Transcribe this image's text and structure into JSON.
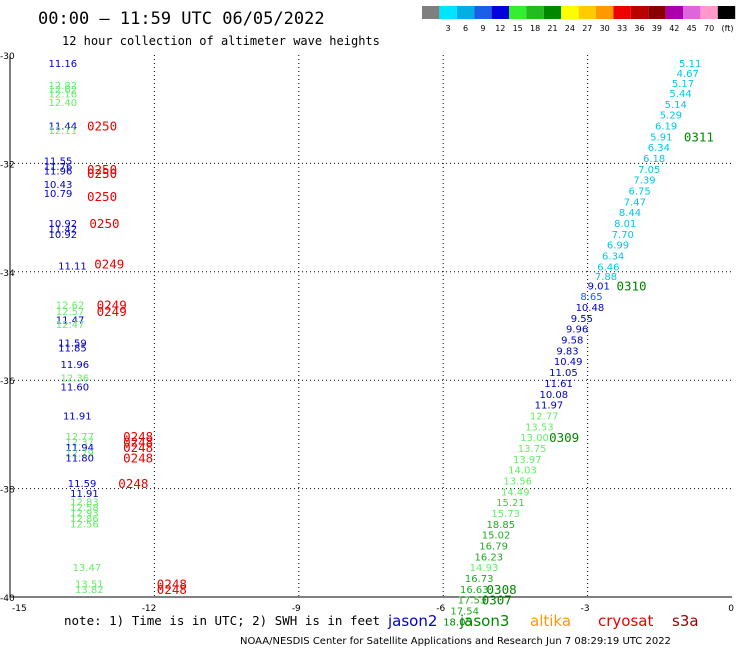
{
  "header": {
    "title": "00:00 — 11:59 UTC 06/05/2022",
    "subtitle": "12 hour collection of altimeter wave heights"
  },
  "legend": {
    "swatches": [
      {
        "color": "#7f7f7f",
        "label": ""
      },
      {
        "color": "#00e5ff",
        "label": "3"
      },
      {
        "color": "#00b0e0",
        "label": "6"
      },
      {
        "color": "#1a5fe8",
        "label": "9"
      },
      {
        "color": "#0000dd",
        "label": "12"
      },
      {
        "color": "#33ee33",
        "label": "15"
      },
      {
        "color": "#22bb22",
        "label": "18"
      },
      {
        "color": "#008800",
        "label": "21"
      },
      {
        "color": "#ffff00",
        "label": "24"
      },
      {
        "color": "#ffcc00",
        "label": "27"
      },
      {
        "color": "#ff9900",
        "label": "30"
      },
      {
        "color": "#ee0000",
        "label": "33"
      },
      {
        "color": "#bb0000",
        "label": "36"
      },
      {
        "color": "#880000",
        "label": "39"
      },
      {
        "color": "#aa00aa",
        "label": "42"
      },
      {
        "color": "#dd66dd",
        "label": "45"
      },
      {
        "color": "#ff99cc",
        "label": "70"
      },
      {
        "color": "#000000",
        "label": "(ft)"
      }
    ]
  },
  "footer": {
    "note": "note: 1) Time is in UTC; 2) SWH is in feet",
    "credit": "NOAA/NESDIS Center for Satellite Applications and Research   Jun  7 08:29:19 UTC 2022",
    "satellites": [
      {
        "name": "jason2",
        "color": "#0000cc"
      },
      {
        "name": "jason3",
        "color": "#008800"
      },
      {
        "name": "altika",
        "color": "#ff9900"
      },
      {
        "name": "cryosat",
        "color": "#ee0000"
      },
      {
        "name": "s3a",
        "color": "#990000"
      }
    ]
  },
  "chart_data": {
    "type": "scatter",
    "xlim": [
      -15,
      0
    ],
    "ylim": [
      -40,
      -30
    ],
    "x_ticks": [
      "-15",
      "-12",
      "-9",
      "-6",
      "-3",
      "0"
    ],
    "y_ticks": [
      "-30",
      "-32",
      "-34",
      "-36",
      "-38",
      "-40"
    ],
    "grid": true,
    "points": [
      {
        "x": -14.2,
        "y": -30.15,
        "text": "11.16",
        "color": "#0000cc"
      },
      {
        "x": -14.2,
        "y": -30.55,
        "text": "12.82",
        "color": "#66ee66"
      },
      {
        "x": -14.2,
        "y": -30.63,
        "text": "12.62",
        "color": "#66ee66"
      },
      {
        "x": -14.2,
        "y": -30.71,
        "text": "12.16",
        "color": "#66ee66"
      },
      {
        "x": -14.2,
        "y": -30.87,
        "text": "12.40",
        "color": "#66ee66"
      },
      {
        "x": -14.2,
        "y": -31.3,
        "text": "11.44",
        "color": "#0000cc"
      },
      {
        "x": -14.2,
        "y": -31.38,
        "text": "12.11",
        "color": "#66ee66"
      },
      {
        "x": -14.3,
        "y": -31.95,
        "text": "11.55",
        "color": "#0000cc"
      },
      {
        "x": -14.3,
        "y": -32.05,
        "text": "11.76",
        "color": "#0000cc"
      },
      {
        "x": -14.3,
        "y": -32.13,
        "text": "11.96",
        "color": "#0000cc"
      },
      {
        "x": -14.3,
        "y": -32.38,
        "text": "10.43",
        "color": "#0000cc"
      },
      {
        "x": -14.3,
        "y": -32.55,
        "text": "10.79",
        "color": "#0000cc"
      },
      {
        "x": -14.2,
        "y": -33.1,
        "text": "10.92",
        "color": "#0000cc"
      },
      {
        "x": -14.2,
        "y": -33.2,
        "text": "11.42",
        "color": "#0000cc"
      },
      {
        "x": -14.2,
        "y": -33.3,
        "text": "10.92",
        "color": "#0000cc"
      },
      {
        "x": -14.0,
        "y": -33.88,
        "text": "11.11",
        "color": "#0000cc"
      },
      {
        "x": -14.05,
        "y": -34.6,
        "text": "12.62",
        "color": "#66ee66"
      },
      {
        "x": -14.05,
        "y": -34.72,
        "text": "12.57",
        "color": "#66ee66"
      },
      {
        "x": -14.05,
        "y": -34.88,
        "text": "11.47",
        "color": "#0000cc"
      },
      {
        "x": -14.05,
        "y": -34.96,
        "text": "12.47",
        "color": "#66ee66"
      },
      {
        "x": -14.0,
        "y": -35.3,
        "text": "11.59",
        "color": "#0000cc"
      },
      {
        "x": -14.0,
        "y": -35.4,
        "text": "11.85",
        "color": "#0000cc"
      },
      {
        "x": -13.95,
        "y": -35.7,
        "text": "11.96",
        "color": "#0000cc"
      },
      {
        "x": -13.95,
        "y": -35.95,
        "text": "12.36",
        "color": "#66ee66"
      },
      {
        "x": -13.95,
        "y": -36.12,
        "text": "11.60",
        "color": "#0000cc"
      },
      {
        "x": -13.9,
        "y": -36.65,
        "text": "11.91",
        "color": "#0000cc"
      },
      {
        "x": -13.85,
        "y": -37.03,
        "text": "12.77",
        "color": "#66ee66"
      },
      {
        "x": -13.85,
        "y": -37.13,
        "text": "12.37",
        "color": "#66ee66"
      },
      {
        "x": -13.85,
        "y": -37.23,
        "text": "11.94",
        "color": "#0000cc"
      },
      {
        "x": -13.85,
        "y": -37.33,
        "text": "12.79",
        "color": "#66ee66"
      },
      {
        "x": -13.85,
        "y": -37.43,
        "text": "11.80",
        "color": "#0000cc"
      },
      {
        "x": -13.8,
        "y": -37.9,
        "text": "11.59",
        "color": "#0000cc"
      },
      {
        "x": -13.75,
        "y": -38.08,
        "text": "11.91",
        "color": "#0000cc"
      },
      {
        "x": -13.75,
        "y": -38.24,
        "text": "12.83",
        "color": "#66ee66"
      },
      {
        "x": -13.75,
        "y": -38.34,
        "text": "12.58",
        "color": "#66ee66"
      },
      {
        "x": -13.75,
        "y": -38.44,
        "text": "12.93",
        "color": "#66ee66"
      },
      {
        "x": -13.75,
        "y": -38.54,
        "text": "12.86",
        "color": "#66ee66"
      },
      {
        "x": -13.75,
        "y": -38.64,
        "text": "12.56",
        "color": "#66ee66"
      },
      {
        "x": -13.7,
        "y": -39.45,
        "text": "13.47",
        "color": "#66ee66"
      },
      {
        "x": -13.65,
        "y": -39.75,
        "text": "13.51",
        "color": "#66ee66"
      },
      {
        "x": -13.65,
        "y": -39.85,
        "text": "13.82",
        "color": "#66ee66"
      },
      {
        "x": -1.1,
        "y": -30.15,
        "text": "5.11",
        "color": "#00c8e8"
      },
      {
        "x": -1.15,
        "y": -30.33,
        "text": "4.67",
        "color": "#00c8e8"
      },
      {
        "x": -1.25,
        "y": -30.52,
        "text": "5.17",
        "color": "#00c8e8"
      },
      {
        "x": -1.3,
        "y": -30.7,
        "text": "5.44",
        "color": "#00c8e8"
      },
      {
        "x": -1.4,
        "y": -30.9,
        "text": "5.14",
        "color": "#00c8e8"
      },
      {
        "x": -1.5,
        "y": -31.1,
        "text": "5.29",
        "color": "#00c8e8"
      },
      {
        "x": -1.6,
        "y": -31.3,
        "text": "6.19",
        "color": "#00c8e8"
      },
      {
        "x": -1.7,
        "y": -31.5,
        "text": "5.91",
        "color": "#00c8e8"
      },
      {
        "x": -1.75,
        "y": -31.7,
        "text": "6.34",
        "color": "#00c8e8"
      },
      {
        "x": -1.85,
        "y": -31.9,
        "text": "6.18",
        "color": "#00c8e8"
      },
      {
        "x": -1.95,
        "y": -32.1,
        "text": "7.05",
        "color": "#00c8e8"
      },
      {
        "x": -2.05,
        "y": -32.3,
        "text": "7.39",
        "color": "#00c8e8"
      },
      {
        "x": -2.15,
        "y": -32.5,
        "text": "6.75",
        "color": "#00c8e8"
      },
      {
        "x": -2.25,
        "y": -32.7,
        "text": "7.47",
        "color": "#00c8e8"
      },
      {
        "x": -2.35,
        "y": -32.9,
        "text": "8.44",
        "color": "#00c8e8"
      },
      {
        "x": -2.45,
        "y": -33.1,
        "text": "8.01",
        "color": "#00c8e8"
      },
      {
        "x": -2.5,
        "y": -33.3,
        "text": "7.70",
        "color": "#00c8e8"
      },
      {
        "x": -2.6,
        "y": -33.5,
        "text": "6.99",
        "color": "#00c8e8"
      },
      {
        "x": -2.7,
        "y": -33.7,
        "text": "6.34",
        "color": "#00c8e8"
      },
      {
        "x": -2.8,
        "y": -33.9,
        "text": "6.46",
        "color": "#00c8e8"
      },
      {
        "x": -2.85,
        "y": -34.08,
        "text": "7.88",
        "color": "#00c8e8"
      },
      {
        "x": -3.0,
        "y": -34.25,
        "text": "9.01",
        "color": "#0000cc"
      },
      {
        "x": -3.15,
        "y": -34.45,
        "text": "8.65",
        "color": "#1a5fe8"
      },
      {
        "x": -3.25,
        "y": -34.65,
        "text": "10.48",
        "color": "#0000cc"
      },
      {
        "x": -3.35,
        "y": -34.85,
        "text": "9.55",
        "color": "#0000cc"
      },
      {
        "x": -3.45,
        "y": -35.05,
        "text": "9.96",
        "color": "#0000cc"
      },
      {
        "x": -3.55,
        "y": -35.25,
        "text": "9.58",
        "color": "#0000cc"
      },
      {
        "x": -3.65,
        "y": -35.45,
        "text": "9.83",
        "color": "#0000cc"
      },
      {
        "x": -3.7,
        "y": -35.65,
        "text": "10.49",
        "color": "#0000cc"
      },
      {
        "x": -3.8,
        "y": -35.85,
        "text": "11.05",
        "color": "#0000cc"
      },
      {
        "x": -3.9,
        "y": -36.05,
        "text": "11.61",
        "color": "#0000cc"
      },
      {
        "x": -4.0,
        "y": -36.25,
        "text": "10.08",
        "color": "#0000cc"
      },
      {
        "x": -4.1,
        "y": -36.45,
        "text": "11.97",
        "color": "#0000cc"
      },
      {
        "x": -4.2,
        "y": -36.65,
        "text": "12.77",
        "color": "#66ee66"
      },
      {
        "x": -4.3,
        "y": -36.85,
        "text": "13.53",
        "color": "#66ee66"
      },
      {
        "x": -4.4,
        "y": -37.05,
        "text": "13.00",
        "color": "#66ee66"
      },
      {
        "x": -4.45,
        "y": -37.25,
        "text": "13.75",
        "color": "#66ee66"
      },
      {
        "x": -4.55,
        "y": -37.45,
        "text": "13.97",
        "color": "#66ee66"
      },
      {
        "x": -4.65,
        "y": -37.65,
        "text": "14.03",
        "color": "#66ee66"
      },
      {
        "x": -4.75,
        "y": -37.85,
        "text": "13.56",
        "color": "#66ee66"
      },
      {
        "x": -4.8,
        "y": -38.05,
        "text": "14.49",
        "color": "#66ee66"
      },
      {
        "x": -4.9,
        "y": -38.25,
        "text": "15.21",
        "color": "#44cc44"
      },
      {
        "x": -5.0,
        "y": -38.45,
        "text": "15.73",
        "color": "#66ee66"
      },
      {
        "x": -5.1,
        "y": -38.65,
        "text": "18.85",
        "color": "#22aa22"
      },
      {
        "x": -5.2,
        "y": -38.85,
        "text": "15.02",
        "color": "#22aa22"
      },
      {
        "x": -5.25,
        "y": -39.05,
        "text": "16.79",
        "color": "#22aa22"
      },
      {
        "x": -5.35,
        "y": -39.25,
        "text": "16.23",
        "color": "#22aa22"
      },
      {
        "x": -5.45,
        "y": -39.45,
        "text": "14.93",
        "color": "#66ee66"
      },
      {
        "x": -5.55,
        "y": -39.65,
        "text": "16.73",
        "color": "#22aa22"
      },
      {
        "x": -5.65,
        "y": -39.85,
        "text": "16.63",
        "color": "#22aa22"
      },
      {
        "x": -5.7,
        "y": -40.05,
        "text": "17.53",
        "color": "#22aa22"
      },
      {
        "x": -5.85,
        "y": -40.25,
        "text": "17.54",
        "color": "#22aa22"
      },
      {
        "x": -6.0,
        "y": -40.45,
        "text": "18.05",
        "color": "#008800"
      }
    ],
    "time_labels": [
      {
        "x": -13.4,
        "y": -31.3,
        "text": "0250",
        "color": "#ee0000"
      },
      {
        "x": -13.4,
        "y": -32.1,
        "text": "0250",
        "color": "#ee0000"
      },
      {
        "x": -13.4,
        "y": -32.18,
        "text": "0250",
        "color": "#ee0000"
      },
      {
        "x": -13.4,
        "y": -32.6,
        "text": "0250",
        "color": "#ee0000"
      },
      {
        "x": -13.35,
        "y": -33.1,
        "text": "0250",
        "color": "#ee0000"
      },
      {
        "x": -13.25,
        "y": -33.85,
        "text": "0249",
        "color": "#ee0000"
      },
      {
        "x": -13.2,
        "y": -34.6,
        "text": "0249",
        "color": "#ee0000"
      },
      {
        "x": -13.2,
        "y": -34.72,
        "text": "0249",
        "color": "#ee0000"
      },
      {
        "x": -12.65,
        "y": -37.03,
        "text": "0248",
        "color": "#ee0000"
      },
      {
        "x": -12.65,
        "y": -37.13,
        "text": "0248",
        "color": "#ee0000"
      },
      {
        "x": -12.65,
        "y": -37.23,
        "text": "0248",
        "color": "#ee0000"
      },
      {
        "x": -12.65,
        "y": -37.43,
        "text": "0248",
        "color": "#ee0000"
      },
      {
        "x": -12.75,
        "y": -37.9,
        "text": "0248",
        "color": "#ee0000"
      },
      {
        "x": -11.95,
        "y": -39.75,
        "text": "0248",
        "color": "#ee0000"
      },
      {
        "x": -11.95,
        "y": -39.85,
        "text": "0248",
        "color": "#ee0000"
      },
      {
        "x": -1.0,
        "y": -31.5,
        "text": "0311",
        "color": "#008800"
      },
      {
        "x": -2.4,
        "y": -34.25,
        "text": "0310",
        "color": "#008800"
      },
      {
        "x": -3.8,
        "y": -37.05,
        "text": "0309",
        "color": "#008800"
      },
      {
        "x": -5.1,
        "y": -39.85,
        "text": "0308",
        "color": "#008800"
      },
      {
        "x": -5.2,
        "y": -40.05,
        "text": "0307",
        "color": "#008800"
      }
    ]
  }
}
